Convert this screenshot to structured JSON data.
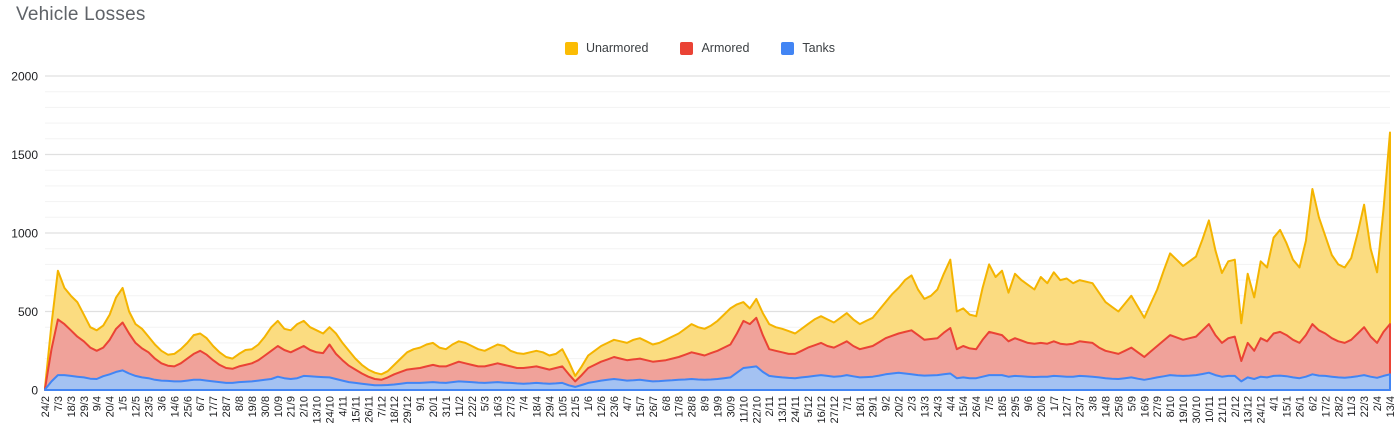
{
  "title": "Vehicle Losses",
  "legend": [
    {
      "label": "Unarmored",
      "color": "#FBBC04"
    },
    {
      "label": "Armored",
      "color": "#EA4335"
    },
    {
      "label": "Tanks",
      "color": "#4285F4"
    }
  ],
  "colors": {
    "title_text": "#5f6368",
    "axis_text": "#202124",
    "major_grid": "#e0e0e0",
    "minor_grid": "#f3f3f3",
    "background": "#ffffff"
  },
  "chart_data": {
    "type": "area",
    "stacked": false,
    "title": "Vehicle Losses",
    "xlabel": "",
    "ylabel": "",
    "ylim": [
      0,
      2000
    ],
    "y_major_ticks": [
      0,
      500,
      1000,
      1500,
      2000
    ],
    "y_minor_step": 100,
    "grid": true,
    "legend_position": "top-center",
    "x_tick_labels": [
      "24/2",
      "7/3",
      "18/3",
      "29/3",
      "9/4",
      "20/4",
      "1/5",
      "12/5",
      "23/5",
      "3/6",
      "14/6",
      "25/6",
      "6/7",
      "17/7",
      "28/7",
      "8/8",
      "19/8",
      "30/8",
      "10/9",
      "21/9",
      "2/10",
      "13/10",
      "24/10",
      "4/11",
      "15/11",
      "26/11",
      "7/12",
      "18/12",
      "29/12",
      "9/1",
      "20/1",
      "31/1",
      "11/2",
      "22/2",
      "5/3",
      "16/3",
      "27/3",
      "7/4",
      "18/4",
      "29/4",
      "10/5",
      "21/5",
      "1/6",
      "12/6",
      "23/6",
      "4/7",
      "15/7",
      "26/7",
      "6/8",
      "17/8",
      "28/8",
      "8/9",
      "19/9",
      "30/9",
      "11/10",
      "22/10",
      "2/11",
      "13/11",
      "24/11",
      "5/12",
      "16/12",
      "27/12",
      "7/1",
      "18/1",
      "29/1",
      "9/2",
      "20/2",
      "2/3",
      "13/3",
      "24/3",
      "4/4",
      "15/4",
      "26/4",
      "7/5",
      "18/5",
      "29/5",
      "9/6",
      "20/6",
      "1/7",
      "12/7",
      "23/7",
      "3/8",
      "14/8",
      "25/8",
      "5/9",
      "16/9",
      "27/9",
      "8/10",
      "19/10",
      "30/10",
      "10/11",
      "21/11",
      "2/12",
      "13/12",
      "24/12",
      "4/1",
      "15/1",
      "26/1",
      "6/2",
      "17/2",
      "28/2",
      "11/3",
      "22/3",
      "2/4",
      "13/4"
    ],
    "points_per_tick": 2,
    "series": [
      {
        "name": "Unarmored",
        "line_color": "#F4B400",
        "fill_color": "#FBDC80",
        "values": [
          15,
          420,
          760,
          650,
          600,
          560,
          480,
          400,
          380,
          410,
          480,
          590,
          650,
          500,
          420,
          390,
          340,
          290,
          250,
          225,
          230,
          260,
          300,
          350,
          360,
          330,
          280,
          240,
          210,
          200,
          230,
          255,
          260,
          290,
          340,
          400,
          440,
          390,
          380,
          420,
          440,
          400,
          380,
          360,
          400,
          360,
          300,
          250,
          200,
          160,
          130,
          110,
          100,
          120,
          160,
          200,
          240,
          260,
          270,
          290,
          300,
          270,
          260,
          290,
          310,
          300,
          280,
          260,
          250,
          270,
          290,
          280,
          250,
          235,
          230,
          240,
          250,
          240,
          220,
          230,
          260,
          180,
          90,
          150,
          220,
          250,
          280,
          300,
          320,
          310,
          300,
          320,
          330,
          310,
          290,
          300,
          320,
          340,
          360,
          390,
          420,
          400,
          390,
          410,
          440,
          480,
          520,
          545,
          560,
          520,
          580,
          490,
          420,
          400,
          390,
          375,
          360,
          390,
          420,
          450,
          470,
          450,
          430,
          460,
          490,
          450,
          420,
          440,
          460,
          510,
          560,
          610,
          650,
          700,
          730,
          640,
          580,
          600,
          640,
          740,
          830,
          500,
          520,
          480,
          470,
          650,
          800,
          720,
          760,
          620,
          740,
          700,
          670,
          640,
          720,
          680,
          750,
          700,
          710,
          680,
          700,
          690,
          680,
          620,
          560,
          530,
          500,
          550,
          600,
          530,
          460,
          550,
          640,
          760,
          870,
          830,
          790,
          820,
          850,
          960,
          1080,
          890,
          745,
          820,
          830,
          425,
          740,
          590,
          820,
          780,
          970,
          1020,
          935,
          830,
          780,
          950,
          1280,
          1100,
          980,
          860,
          800,
          780,
          840,
          1000,
          1180,
          900,
          750,
          1150,
          1640
        ]
      },
      {
        "name": "Armored",
        "line_color": "#EA4335",
        "fill_color": "#F0A29A",
        "values": [
          8,
          260,
          450,
          420,
          380,
          340,
          310,
          270,
          250,
          270,
          320,
          390,
          430,
          360,
          300,
          265,
          240,
          200,
          170,
          155,
          150,
          170,
          200,
          230,
          250,
          225,
          190,
          160,
          140,
          135,
          150,
          160,
          170,
          190,
          220,
          250,
          280,
          255,
          240,
          260,
          280,
          255,
          240,
          235,
          290,
          230,
          190,
          155,
          130,
          105,
          85,
          70,
          65,
          80,
          100,
          115,
          130,
          135,
          140,
          150,
          160,
          150,
          150,
          165,
          180,
          170,
          160,
          150,
          150,
          160,
          170,
          160,
          150,
          140,
          140,
          145,
          150,
          140,
          130,
          140,
          150,
          100,
          55,
          95,
          140,
          160,
          180,
          195,
          210,
          200,
          190,
          195,
          200,
          190,
          180,
          185,
          190,
          200,
          210,
          225,
          240,
          230,
          220,
          235,
          250,
          270,
          290,
          360,
          440,
          420,
          460,
          350,
          260,
          250,
          240,
          230,
          230,
          250,
          270,
          285,
          300,
          280,
          270,
          290,
          310,
          280,
          260,
          270,
          280,
          305,
          330,
          345,
          360,
          370,
          380,
          350,
          320,
          325,
          330,
          365,
          395,
          260,
          280,
          265,
          260,
          320,
          370,
          360,
          350,
          310,
          330,
          315,
          300,
          295,
          300,
          295,
          310,
          295,
          290,
          295,
          310,
          305,
          300,
          270,
          250,
          240,
          230,
          250,
          270,
          240,
          210,
          245,
          280,
          315,
          350,
          335,
          320,
          330,
          340,
          380,
          420,
          350,
          300,
          330,
          340,
          185,
          300,
          250,
          330,
          310,
          360,
          370,
          350,
          320,
          300,
          350,
          420,
          380,
          360,
          330,
          310,
          300,
          320,
          360,
          400,
          340,
          300,
          370,
          420
        ]
      },
      {
        "name": "Tanks",
        "line_color": "#4285F4",
        "fill_color": "#A4C2F2",
        "values": [
          3,
          55,
          95,
          95,
          90,
          85,
          80,
          72,
          70,
          88,
          100,
          115,
          125,
          105,
          90,
          80,
          75,
          65,
          60,
          58,
          55,
          55,
          60,
          65,
          65,
          60,
          55,
          50,
          45,
          45,
          50,
          52,
          55,
          60,
          65,
          70,
          85,
          75,
          70,
          75,
          90,
          88,
          85,
          82,
          80,
          70,
          60,
          50,
          45,
          40,
          35,
          30,
          30,
          32,
          35,
          40,
          45,
          45,
          45,
          48,
          50,
          47,
          45,
          50,
          55,
          52,
          50,
          47,
          45,
          48,
          50,
          47,
          45,
          42,
          40,
          42,
          45,
          42,
          40,
          42,
          45,
          30,
          20,
          32,
          45,
          52,
          60,
          65,
          70,
          65,
          60,
          62,
          65,
          60,
          55,
          57,
          60,
          62,
          65,
          67,
          70,
          67,
          65,
          67,
          70,
          75,
          80,
          110,
          140,
          145,
          150,
          115,
          90,
          85,
          80,
          77,
          75,
          80,
          85,
          90,
          95,
          90,
          85,
          87,
          95,
          87,
          80,
          82,
          85,
          92,
          100,
          105,
          110,
          105,
          100,
          95,
          92,
          93,
          95,
          100,
          105,
          75,
          80,
          75,
          75,
          85,
          95,
          95,
          95,
          85,
          90,
          87,
          85,
          83,
          85,
          85,
          90,
          87,
          85,
          85,
          90,
          87,
          85,
          80,
          75,
          72,
          70,
          75,
          80,
          72,
          65,
          72,
          80,
          87,
          95,
          92,
          90,
          92,
          95,
          102,
          110,
          95,
          85,
          90,
          90,
          55,
          80,
          70,
          85,
          80,
          90,
          92,
          88,
          80,
          75,
          85,
          100,
          92,
          90,
          85,
          80,
          78,
          82,
          88,
          95,
          85,
          78,
          90,
          100
        ]
      }
    ]
  }
}
